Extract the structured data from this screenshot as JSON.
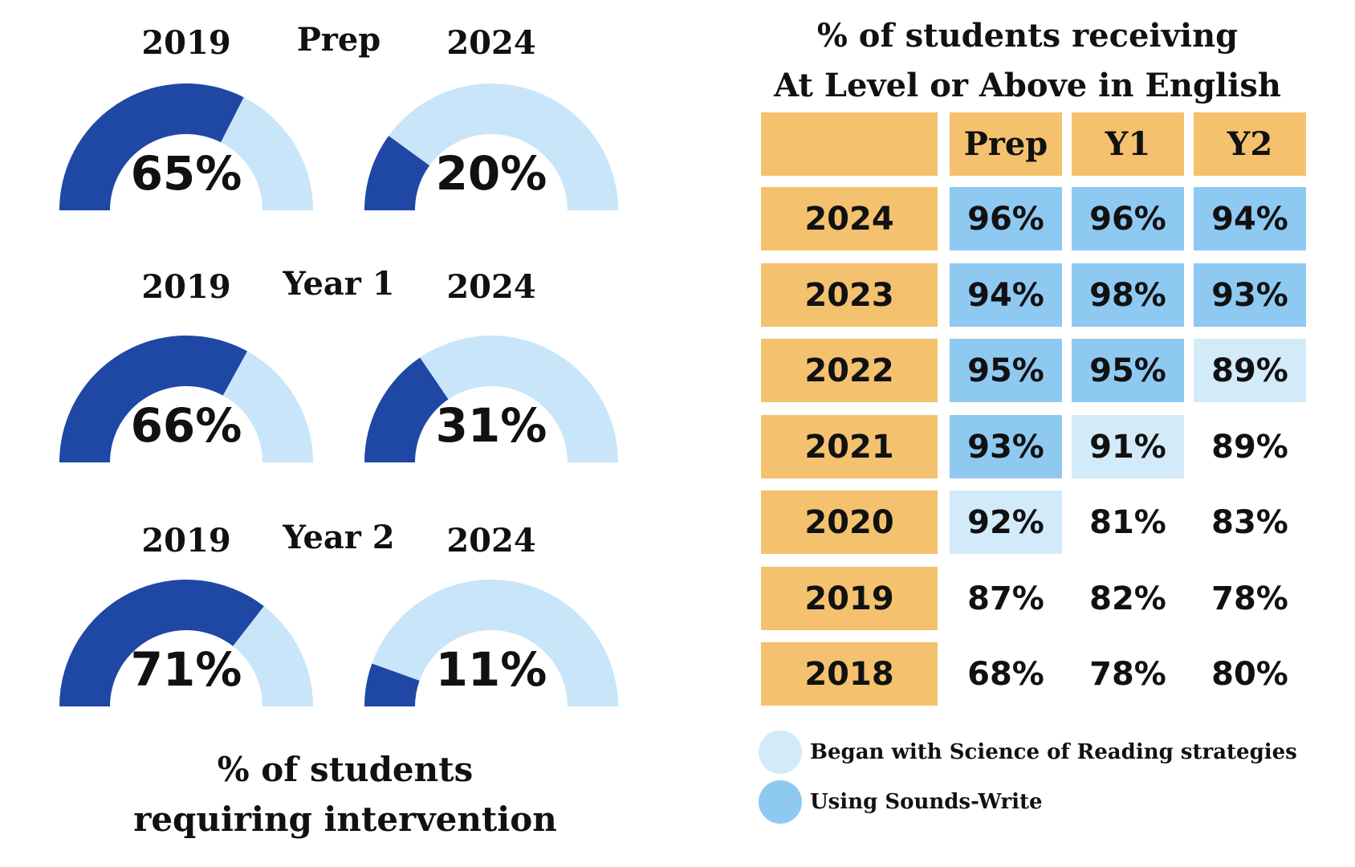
{
  "intervention": {
    "title_line1": "% of students",
    "title_line2": "requiring intervention",
    "groups": [
      {
        "name": "Prep",
        "year_a": "2019",
        "year_b": "2024",
        "value_a": 65,
        "label_a": "65%",
        "value_b": 20,
        "label_b": "20%"
      },
      {
        "name": "Year 1",
        "year_a": "2019",
        "year_b": "2024",
        "value_a": 66,
        "label_a": "66%",
        "value_b": 31,
        "label_b": "31%"
      },
      {
        "name": "Year 2",
        "year_a": "2019",
        "year_b": "2024",
        "value_a": 71,
        "label_a": "71%",
        "value_b": 11,
        "label_b": "11%"
      }
    ]
  },
  "table": {
    "title_line1": "% of students receiving",
    "title_line2": "At Level or Above in English",
    "columns": [
      "Prep",
      "Y1",
      "Y2"
    ],
    "rows": [
      {
        "year": "2024",
        "cells": [
          {
            "text": "96%",
            "tint": "sw"
          },
          {
            "text": "96%",
            "tint": "sw"
          },
          {
            "text": "94%",
            "tint": "sw"
          }
        ]
      },
      {
        "year": "2023",
        "cells": [
          {
            "text": "94%",
            "tint": "sw"
          },
          {
            "text": "98%",
            "tint": "sw"
          },
          {
            "text": "93%",
            "tint": "sw"
          }
        ]
      },
      {
        "year": "2022",
        "cells": [
          {
            "text": "95%",
            "tint": "sw"
          },
          {
            "text": "95%",
            "tint": "sw"
          },
          {
            "text": "89%",
            "tint": "sor"
          }
        ]
      },
      {
        "year": "2021",
        "cells": [
          {
            "text": "93%",
            "tint": "sw"
          },
          {
            "text": "91%",
            "tint": "sor"
          },
          {
            "text": "89%",
            "tint": "none"
          }
        ]
      },
      {
        "year": "2020",
        "cells": [
          {
            "text": "92%",
            "tint": "sor"
          },
          {
            "text": "81%",
            "tint": "none"
          },
          {
            "text": "83%",
            "tint": "none"
          }
        ]
      },
      {
        "year": "2019",
        "cells": [
          {
            "text": "87%",
            "tint": "none"
          },
          {
            "text": "82%",
            "tint": "none"
          },
          {
            "text": "78%",
            "tint": "none"
          }
        ]
      },
      {
        "year": "2018",
        "cells": [
          {
            "text": "68%",
            "tint": "none"
          },
          {
            "text": "78%",
            "tint": "none"
          },
          {
            "text": "80%",
            "tint": "none"
          }
        ]
      }
    ]
  },
  "legend": [
    {
      "label": "Began with Science of Reading strategies",
      "tint": "sor"
    },
    {
      "label": "Using Sounds-Write",
      "tint": "sw"
    }
  ],
  "colors": {
    "gauge_fill": "#1f47a4",
    "gauge_track": "#c9e5f9",
    "header_orange": "#f4c16e",
    "sounds_write": "#8ec9f2",
    "science_of_reading": "#d3eaf9",
    "text": "#111111"
  },
  "chart_data": [
    {
      "type": "gauge",
      "title": "% of students requiring intervention",
      "categories": [
        "Prep",
        "Year 1",
        "Year 2"
      ],
      "series": [
        {
          "name": "2019",
          "values": [
            65,
            66,
            71
          ]
        },
        {
          "name": "2024",
          "values": [
            20,
            31,
            11
          ]
        }
      ],
      "ylim": [
        0,
        100
      ]
    },
    {
      "type": "table",
      "title": "% of students receiving At Level or Above in English",
      "columns": [
        "Prep",
        "Y1",
        "Y2"
      ],
      "rows": [
        "2024",
        "2023",
        "2022",
        "2021",
        "2020",
        "2019",
        "2018"
      ],
      "values": [
        [
          96,
          96,
          94
        ],
        [
          94,
          98,
          93
        ],
        [
          95,
          95,
          89
        ],
        [
          93,
          91,
          89
        ],
        [
          92,
          81,
          83
        ],
        [
          87,
          82,
          78
        ],
        [
          68,
          78,
          80
        ]
      ]
    }
  ]
}
